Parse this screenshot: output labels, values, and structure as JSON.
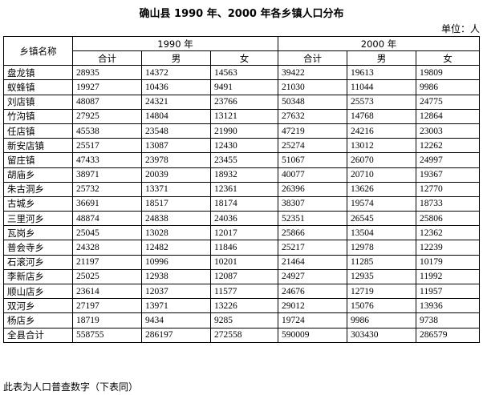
{
  "title": "确山县 1990 年、2000 年各乡镇人口分布",
  "unit": "单位：人",
  "headers": {
    "name": "乡镇名称",
    "year1990": "1990 年",
    "year2000": "2000 年",
    "sub": [
      "合计",
      "男",
      "女",
      "合计",
      "男",
      "女"
    ]
  },
  "rows": [
    {
      "name": "盘龙镇",
      "v": [
        "28935",
        "14372",
        "14563",
        "39422",
        "19613",
        "19809"
      ]
    },
    {
      "name": "蚁蜂镇",
      "v": [
        "19927",
        "10436",
        "9491",
        "21030",
        "11044",
        "9986"
      ]
    },
    {
      "name": "刘店镇",
      "v": [
        "48087",
        "24321",
        "23766",
        "50348",
        "25573",
        "24775"
      ]
    },
    {
      "name": "竹沟镇",
      "v": [
        "27925",
        "14804",
        "13121",
        "27632",
        "14768",
        "12864"
      ]
    },
    {
      "name": "任店镇",
      "v": [
        "45538",
        "23548",
        "21990",
        "47219",
        "24216",
        "23003"
      ]
    },
    {
      "name": "新安店镇",
      "v": [
        "25517",
        "13087",
        "12430",
        "25274",
        "13012",
        "12262"
      ]
    },
    {
      "name": "留庄镇",
      "v": [
        "47433",
        "23978",
        "23455",
        "51067",
        "26070",
        "24997"
      ]
    },
    {
      "name": "胡庙乡",
      "v": [
        "38971",
        "20039",
        "18932",
        "40077",
        "20710",
        "19367"
      ]
    },
    {
      "name": "朱古洞乡",
      "v": [
        "25732",
        "13371",
        "12361",
        "26396",
        "13626",
        "12770"
      ]
    },
    {
      "name": "古城乡",
      "v": [
        "36691",
        "18517",
        "18174",
        "38307",
        "19574",
        "18733"
      ]
    },
    {
      "name": "三里河乡",
      "v": [
        "48874",
        "24838",
        "24036",
        "52351",
        "26545",
        "25806"
      ]
    },
    {
      "name": "瓦岗乡",
      "v": [
        "25045",
        "13028",
        "12017",
        "25866",
        "13504",
        "12362"
      ]
    },
    {
      "name": "普会寺乡",
      "v": [
        "24328",
        "12482",
        "11846",
        "25217",
        "12978",
        "12239"
      ]
    },
    {
      "name": "石滚河乡",
      "v": [
        "21197",
        "10996",
        "10201",
        "21464",
        "11285",
        "10179"
      ]
    },
    {
      "name": "李新店乡",
      "v": [
        "25025",
        "12938",
        "12087",
        "24927",
        "12935",
        "11992"
      ]
    },
    {
      "name": "顺山店乡",
      "v": [
        "23614",
        "12037",
        "11577",
        "24676",
        "12719",
        "11957"
      ]
    },
    {
      "name": "双河乡",
      "v": [
        "27197",
        "13971",
        "13226",
        "29012",
        "15076",
        "13936"
      ]
    },
    {
      "name": "杨店乡",
      "v": [
        "18719",
        "9434",
        "9285",
        "19724",
        "9986",
        "9738"
      ]
    },
    {
      "name": "全县合计",
      "v": [
        "558755",
        "286197",
        "272558",
        "590009",
        "303430",
        "286579"
      ]
    }
  ],
  "note": "此表为人口普查数字（下表同）"
}
